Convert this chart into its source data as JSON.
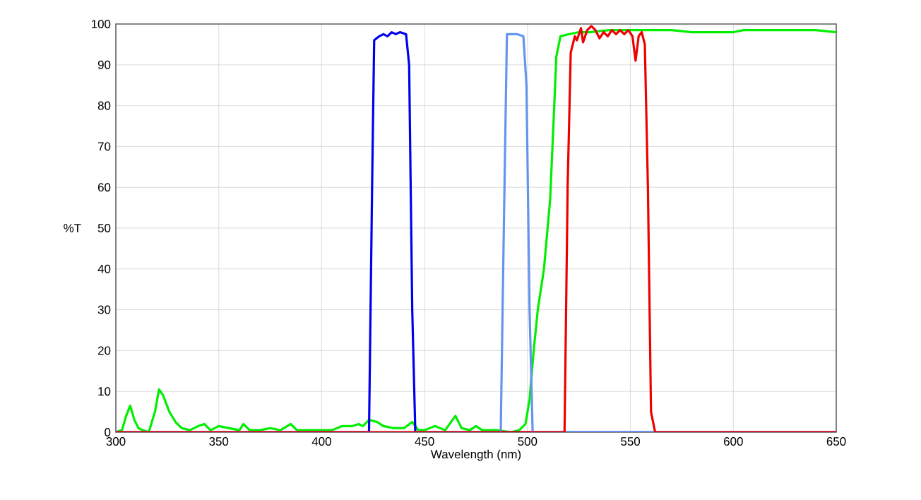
{
  "chart_data": {
    "type": "line",
    "xlabel": "Wavelength (nm)",
    "ylabel": "%T",
    "xlim": [
      300,
      650
    ],
    "ylim": [
      0,
      100
    ],
    "xticks": [
      300,
      350,
      400,
      450,
      500,
      550,
      600,
      650
    ],
    "yticks": [
      0,
      10,
      20,
      30,
      40,
      50,
      60,
      70,
      80,
      90,
      100
    ],
    "grid": true,
    "marker": "none",
    "line_style": "solid",
    "series": [
      {
        "color": "#00ee00",
        "x": [
          300,
          303,
          305,
          307,
          309,
          311,
          313,
          316,
          319,
          321,
          323,
          326,
          329,
          332,
          336,
          340,
          343,
          346,
          350,
          355,
          360,
          362,
          365,
          370,
          375,
          380,
          385,
          388,
          395,
          400,
          405,
          410,
          415,
          418,
          420,
          423,
          427,
          430,
          435,
          440,
          444,
          447,
          450,
          455,
          460,
          465,
          468,
          472,
          475,
          478,
          485,
          492,
          496,
          499,
          501,
          503,
          505,
          508,
          511,
          513,
          514,
          516,
          520,
          525,
          530,
          540,
          550,
          560,
          570,
          580,
          590,
          600,
          605,
          610,
          620,
          630,
          640,
          650
        ],
        "values": [
          0,
          0.5,
          4,
          6.5,
          3,
          1,
          0.5,
          0,
          5,
          10.5,
          9,
          5,
          2.5,
          1,
          0.5,
          1.5,
          2,
          0.5,
          1.5,
          1,
          0.5,
          2,
          0.5,
          0.5,
          1,
          0.5,
          2,
          0.5,
          0.5,
          0.5,
          0.5,
          1.5,
          1.5,
          2,
          1.5,
          3,
          2.5,
          1.5,
          1,
          1,
          2.5,
          0.5,
          0.5,
          1.5,
          0.5,
          4,
          1,
          0.5,
          1.5,
          0.5,
          0.5,
          0,
          0.5,
          2,
          8,
          20,
          30,
          40,
          57,
          80,
          92,
          97,
          97.5,
          98,
          98,
          98.5,
          98.5,
          98.5,
          98.5,
          98,
          98,
          98,
          98.5,
          98.5,
          98.5,
          98.5,
          98.5,
          98
        ]
      },
      {
        "color": "#0000ee",
        "x": [
          300,
          423,
          424.5,
          425.5,
          428,
          430,
          432,
          434,
          436,
          438,
          441,
          442.5,
          444,
          445.5,
          650
        ],
        "values": [
          0,
          0,
          60,
          96,
          97,
          97.5,
          97,
          98,
          97.5,
          98,
          97.5,
          90,
          30,
          0,
          0
        ]
      },
      {
        "color": "#6495ed",
        "x": [
          300,
          487,
          488.5,
          490,
          495,
          498,
          499.5,
          501,
          502.5,
          650
        ],
        "values": [
          0,
          0,
          50,
          97.5,
          97.5,
          97,
          85,
          30,
          0,
          0
        ]
      },
      {
        "color": "#ee0000",
        "x": [
          300,
          518,
          519.5,
          521,
          523,
          524,
          526,
          527,
          529,
          531,
          533,
          535,
          537,
          539,
          541,
          543,
          545,
          547,
          549,
          551,
          552.5,
          554,
          555.5,
          557,
          558.5,
          560,
          562,
          650
        ],
        "values": [
          0,
          0,
          60,
          93,
          97,
          96,
          99,
          95.5,
          98.5,
          99.5,
          98.5,
          96.5,
          98,
          97,
          98.5,
          97.5,
          98.5,
          97.5,
          98.5,
          97,
          91,
          97,
          98,
          95,
          60,
          5,
          0,
          0
        ]
      }
    ]
  }
}
